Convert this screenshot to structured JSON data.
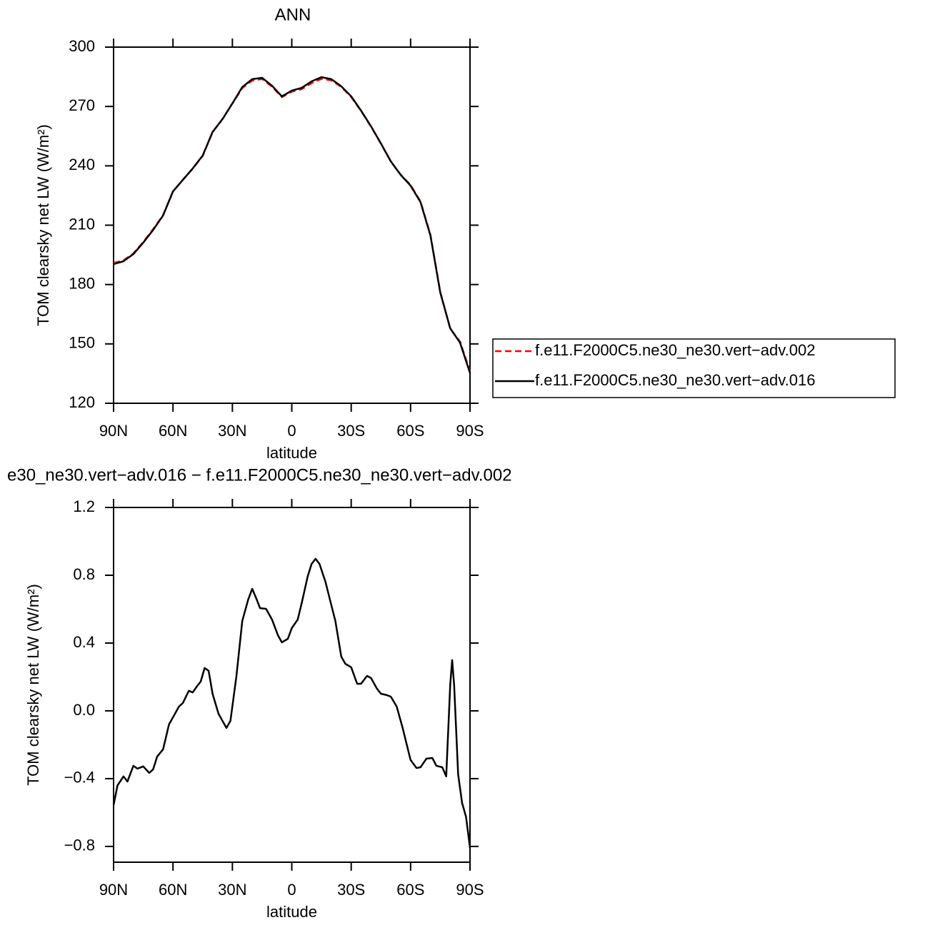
{
  "chart_data": [
    {
      "type": "line",
      "title": "ANN",
      "y_label": "TOM clearsky net LW (W/m²)",
      "x_label": "latitude",
      "x": [
        90,
        85,
        80,
        75,
        70,
        65,
        60,
        55,
        50,
        45,
        40,
        35,
        30,
        25,
        20,
        15,
        10,
        5,
        0,
        -5,
        -10,
        -15,
        -20,
        -25,
        -30,
        -35,
        -40,
        -45,
        -50,
        -55,
        -60,
        -65,
        -70,
        -75,
        -80,
        -85,
        -90
      ],
      "series": [
        {
          "name": "f.e11.F2000C5.ne30_ne30.vert−adv.002",
          "color": "#ff0000",
          "dashed": true,
          "values": [
            190.9,
            192.2,
            195.7,
            201.5,
            208.0,
            215.1,
            227.1,
            232.9,
            238.6,
            245.0,
            257.0,
            263.7,
            271.5,
            279.3,
            283.1,
            283.9,
            280.0,
            274.7,
            277.5,
            278.8,
            281.8,
            284.0,
            283.2,
            279.9,
            274.8,
            267.7,
            259.8,
            251.2,
            242.2,
            235.5,
            230.3,
            222.0,
            205.1,
            176.2,
            157.7,
            151.1,
            136.1
          ]
        },
        {
          "name": "f.e11.F2000C5.ne30_ne30.vert−adv.016",
          "color": "#000000",
          "dashed": false,
          "values": [
            190.3,
            191.8,
            195.4,
            201.2,
            207.6,
            214.9,
            227.1,
            232.9,
            238.7,
            245.2,
            257.1,
            263.6,
            271.5,
            279.8,
            283.8,
            284.5,
            280.5,
            275.1,
            278.0,
            279.4,
            282.7,
            284.8,
            283.8,
            280.2,
            275.1,
            267.9,
            260.0,
            251.3,
            242.3,
            235.4,
            230.0,
            221.7,
            204.8,
            175.9,
            157.9,
            150.6,
            135.3
          ]
        }
      ],
      "xlim": [
        90,
        -90
      ],
      "xticks": [
        {
          "value": 90,
          "label": "90N"
        },
        {
          "value": 60,
          "label": "60N"
        },
        {
          "value": 30,
          "label": "30N"
        },
        0,
        {
          "value": -30,
          "label": "30S"
        },
        {
          "value": -60,
          "label": "60S"
        },
        {
          "value": -90,
          "label": "90S"
        }
      ],
      "ylim": [
        120,
        300
      ],
      "yticks": [
        120,
        150,
        180,
        210,
        240,
        270,
        300
      ],
      "legend": "right"
    },
    {
      "type": "line",
      "title": "e30_ne30.vert−adv.016 − f.e11.F2000C5.ne30_ne30.vert−adv.002",
      "y_label": "TOM clearsky net LW (W/m²)",
      "x_label": "latitude",
      "x": [
        90,
        88,
        85,
        83,
        80,
        78,
        75,
        72,
        70,
        68,
        65,
        62,
        60,
        57,
        55,
        52,
        50,
        48,
        46,
        44,
        42,
        40,
        37,
        35,
        33,
        31,
        28,
        25,
        22,
        20,
        18,
        16,
        13,
        10,
        7,
        5,
        2,
        0,
        -3,
        -5,
        -8,
        -10,
        -12,
        -14,
        -17,
        -20,
        -22,
        -25,
        -27,
        -30,
        -33,
        -35,
        -38,
        -40,
        -43,
        -45,
        -48,
        -50,
        -53,
        -56,
        -60,
        -63,
        -65,
        -68,
        -71,
        -73,
        -76,
        -78,
        -80,
        -81,
        -82,
        -84,
        -86,
        -88,
        -90
      ],
      "values": [
        -0.556,
        -0.44,
        -0.387,
        -0.417,
        -0.324,
        -0.341,
        -0.328,
        -0.366,
        -0.345,
        -0.27,
        -0.227,
        -0.08,
        -0.038,
        0.025,
        0.046,
        0.118,
        0.109,
        0.143,
        0.173,
        0.253,
        0.236,
        0.101,
        -0.017,
        -0.059,
        -0.101,
        -0.059,
        0.202,
        0.531,
        0.657,
        0.72,
        0.665,
        0.606,
        0.602,
        0.539,
        0.446,
        0.404,
        0.425,
        0.488,
        0.539,
        0.636,
        0.792,
        0.867,
        0.897,
        0.867,
        0.762,
        0.623,
        0.531,
        0.32,
        0.278,
        0.257,
        0.16,
        0.16,
        0.206,
        0.194,
        0.131,
        0.101,
        0.093,
        0.084,
        0.025,
        -0.101,
        -0.29,
        -0.337,
        -0.333,
        -0.282,
        -0.278,
        -0.324,
        -0.333,
        -0.387,
        0.152,
        0.299,
        0.152,
        -0.375,
        -0.543,
        -0.627,
        -0.808
      ],
      "color": "#000000",
      "xlim": [
        90,
        -90
      ],
      "xticks": [
        {
          "value": 90,
          "label": "90N"
        },
        {
          "value": 60,
          "label": "60N"
        },
        {
          "value": 30,
          "label": "30N"
        },
        0,
        {
          "value": -30,
          "label": "30S"
        },
        {
          "value": -60,
          "label": "60S"
        },
        {
          "value": -90,
          "label": "90S"
        }
      ],
      "ylim": [
        -0.893,
        1.2
      ],
      "yticks": [
        {
          "value": -0.8,
          "label": "−0.8"
        },
        {
          "value": -0.4,
          "label": "−0.4"
        },
        {
          "value": 0,
          "label": "0.0"
        },
        0.4,
        0.8,
        1.2
      ]
    }
  ]
}
